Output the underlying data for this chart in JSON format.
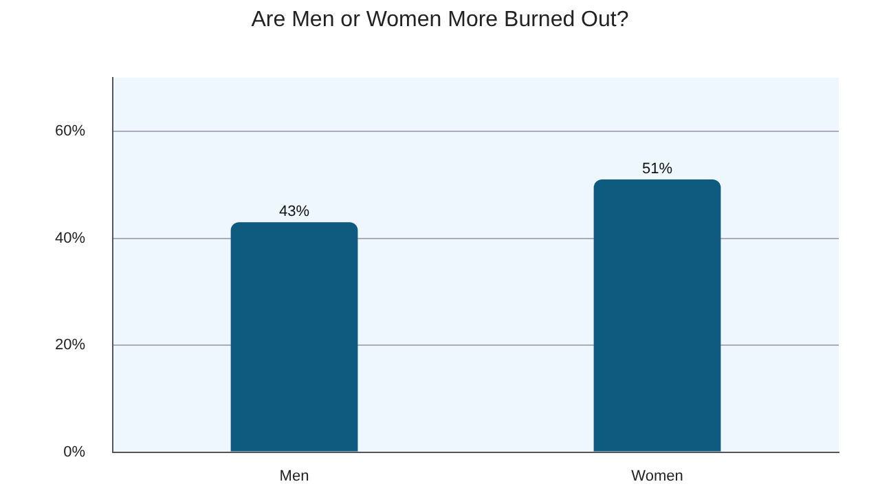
{
  "chart_data": {
    "type": "bar",
    "title": "Are Men or Women More Burned Out?",
    "categories": [
      "Men",
      "Women"
    ],
    "values": [
      43,
      51
    ],
    "value_labels": [
      "43%",
      "51%"
    ],
    "color": "#0f5b80",
    "ylim": [
      0,
      70
    ],
    "yticks": [
      {
        "value": 0,
        "label": "0%"
      },
      {
        "value": 20,
        "label": "20%"
      },
      {
        "value": 40,
        "label": "40%"
      },
      {
        "value": 60,
        "label": "60%"
      }
    ],
    "grid": "y",
    "legend": false
  }
}
